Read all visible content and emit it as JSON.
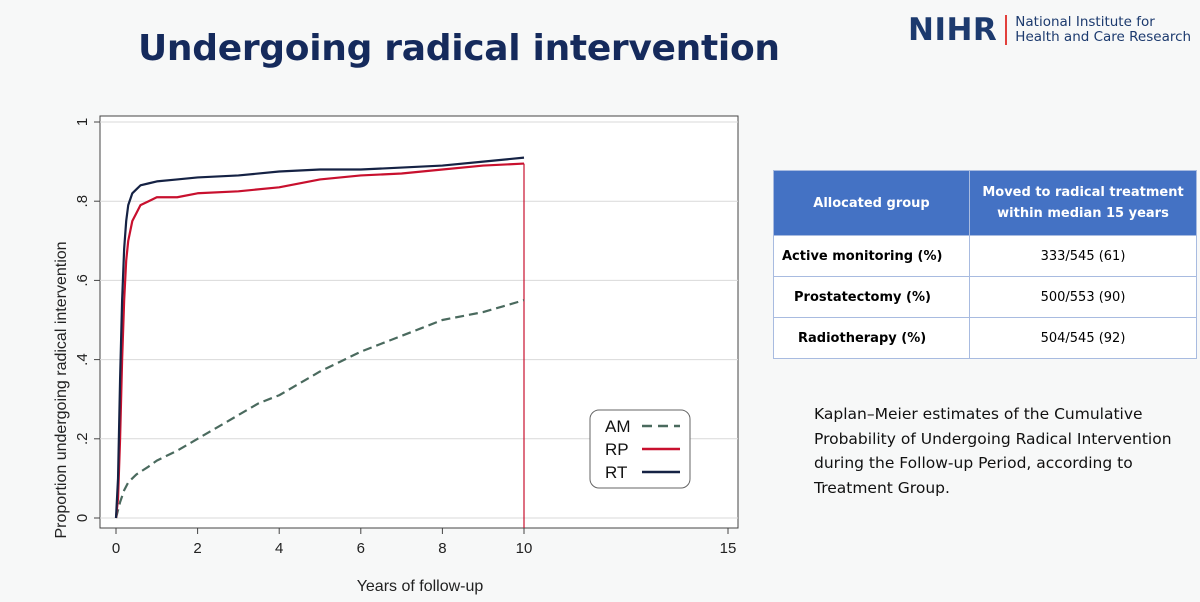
{
  "slide": {
    "title": "Undergoing radical intervention"
  },
  "logo": {
    "mark": "NIHR",
    "line1": "National Institute for",
    "line2": "Health and Care Research"
  },
  "chart_data": {
    "type": "line",
    "title": "",
    "xlabel": "Years of follow-up",
    "ylabel": "Proportion undergoing radical intervention",
    "xlim": [
      0,
      15
    ],
    "ylim": [
      0,
      1
    ],
    "xticks": [
      "0",
      "2",
      "4",
      "6",
      "8",
      "10",
      "15"
    ],
    "xtick_values": [
      0,
      2,
      4,
      6,
      8,
      10,
      15
    ],
    "yticks": [
      "0",
      ".2",
      ".4",
      ".6",
      ".8",
      "1"
    ],
    "ytick_values": [
      0,
      0.2,
      0.4,
      0.6,
      0.8,
      1
    ],
    "grid": true,
    "legend_position": "bottom-right",
    "reference_line_x": 10,
    "series": [
      {
        "name": "AM",
        "color": "#4a6a5e",
        "dash": true,
        "x": [
          0,
          0.1,
          0.2,
          0.3,
          0.5,
          0.8,
          1.0,
          1.5,
          2.0,
          2.5,
          3.0,
          3.5,
          4.0,
          4.5,
          5.0,
          5.5,
          6.0,
          6.5,
          7.0,
          7.5,
          8.0,
          8.5,
          9.0,
          9.5,
          10.0
        ],
        "y": [
          0,
          0.04,
          0.07,
          0.09,
          0.11,
          0.13,
          0.145,
          0.17,
          0.2,
          0.23,
          0.26,
          0.29,
          0.31,
          0.34,
          0.37,
          0.395,
          0.42,
          0.44,
          0.46,
          0.48,
          0.5,
          0.51,
          0.52,
          0.535,
          0.55
        ]
      },
      {
        "name": "RP",
        "color": "#c8102e",
        "dash": false,
        "x": [
          0,
          0.05,
          0.1,
          0.15,
          0.2,
          0.25,
          0.3,
          0.4,
          0.5,
          0.6,
          0.8,
          1.0,
          1.5,
          2.0,
          3.0,
          4.0,
          5.0,
          6.0,
          7.0,
          8.0,
          9.0,
          10.0
        ],
        "y": [
          0,
          0.05,
          0.2,
          0.4,
          0.55,
          0.65,
          0.7,
          0.75,
          0.77,
          0.79,
          0.8,
          0.81,
          0.81,
          0.82,
          0.825,
          0.835,
          0.855,
          0.865,
          0.87,
          0.88,
          0.89,
          0.895
        ]
      },
      {
        "name": "RT",
        "color": "#152244",
        "dash": false,
        "x": [
          0,
          0.05,
          0.1,
          0.15,
          0.2,
          0.25,
          0.3,
          0.4,
          0.5,
          0.6,
          0.8,
          1.0,
          1.5,
          2.0,
          3.0,
          4.0,
          5.0,
          6.0,
          7.0,
          8.0,
          9.0,
          10.0
        ],
        "y": [
          0,
          0.1,
          0.35,
          0.55,
          0.68,
          0.75,
          0.79,
          0.82,
          0.83,
          0.84,
          0.845,
          0.85,
          0.855,
          0.86,
          0.865,
          0.875,
          0.88,
          0.88,
          0.885,
          0.89,
          0.9,
          0.91
        ]
      }
    ]
  },
  "table": {
    "headers": [
      "Allocated group",
      "Moved to radical treatment within median 15 years"
    ],
    "rows": [
      {
        "group": "Active monitoring (%)",
        "value": "333/545 (61)"
      },
      {
        "group": "Prostatectomy (%)",
        "value": "500/553 (90)"
      },
      {
        "group": "Radiotherapy (%)",
        "value": "504/545 (92)"
      }
    ]
  },
  "caption": "Kaplan–Meier estimates of the Cumulative Probability of Undergoing Radical Intervention during the Follow-up Period, according to Treatment Group."
}
